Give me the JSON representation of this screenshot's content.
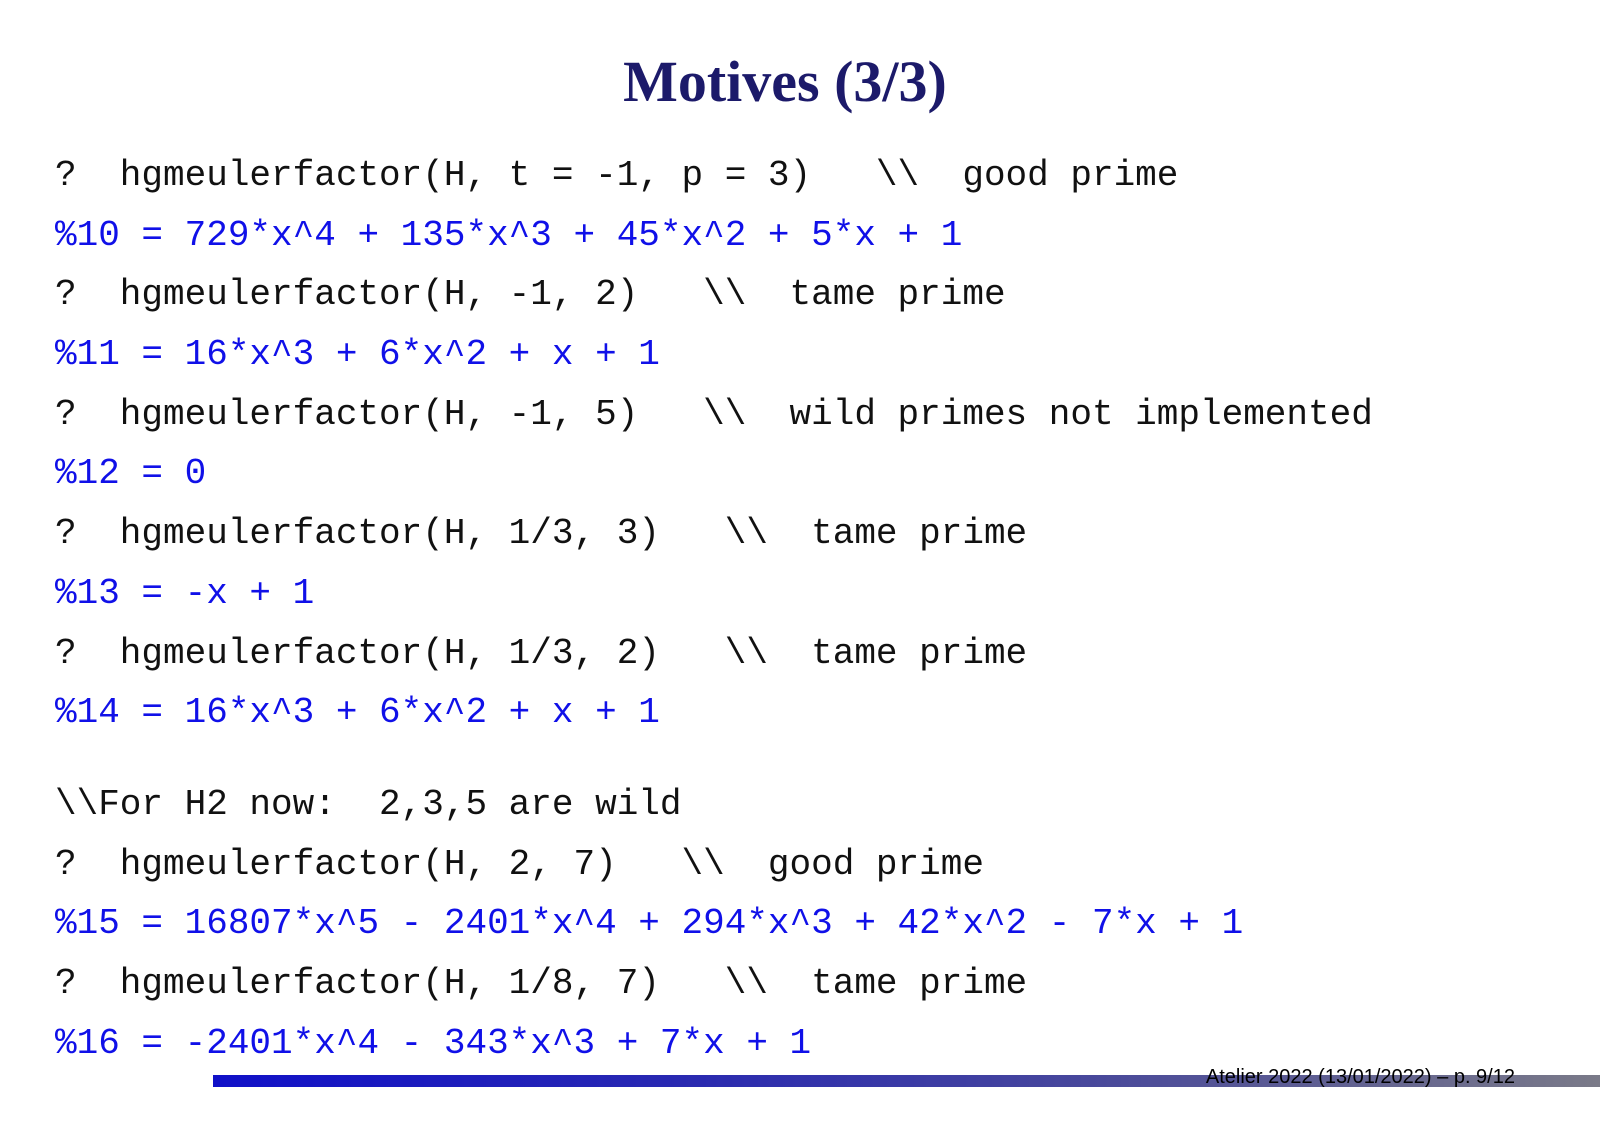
{
  "title": "Motives (3/3)",
  "lines": [
    {
      "type": "input",
      "text": "?  hgmeulerfactor(H, t = -1, p = 3)   \\\\  good prime"
    },
    {
      "type": "output",
      "text": "%10 = 729*x^4 + 135*x^3 + 45*x^2 + 5*x + 1"
    },
    {
      "type": "input",
      "text": "?  hgmeulerfactor(H, -1, 2)   \\\\  tame prime"
    },
    {
      "type": "output",
      "text": "%11 = 16*x^3 + 6*x^2 + x + 1"
    },
    {
      "type": "input",
      "text": "?  hgmeulerfactor(H, -1, 5)   \\\\  wild primes not implemented"
    },
    {
      "type": "output",
      "text": "%12 = 0"
    },
    {
      "type": "input",
      "text": "?  hgmeulerfactor(H, 1/3, 3)   \\\\  tame prime"
    },
    {
      "type": "output",
      "text": "%13 = -x + 1"
    },
    {
      "type": "input",
      "text": "?  hgmeulerfactor(H, 1/3, 2)   \\\\  tame prime"
    },
    {
      "type": "output",
      "text": "%14 = 16*x^3 + 6*x^2 + x + 1"
    },
    {
      "type": "comment",
      "text": "\\\\For H2 now:  2,3,5 are wild"
    },
    {
      "type": "input",
      "text": "?  hgmeulerfactor(H, 2, 7)   \\\\  good prime"
    },
    {
      "type": "output",
      "text": "%15 = 16807*x^5 - 2401*x^4 + 294*x^3 + 42*x^2 - 7*x + 1"
    },
    {
      "type": "input",
      "text": "?  hgmeulerfactor(H, 1/8, 7)   \\\\  tame prime"
    },
    {
      "type": "output",
      "text": "%16 = -2401*x^4 - 343*x^3 + 7*x + 1"
    }
  ],
  "footer": "Atelier 2022 (13/01/2022) – p. 9/12",
  "colors": {
    "title": "#1c1a6a",
    "output": "#1010e8",
    "input": "#111111",
    "bar_start": "#1010c8",
    "bar_end": "#7a7a88"
  }
}
